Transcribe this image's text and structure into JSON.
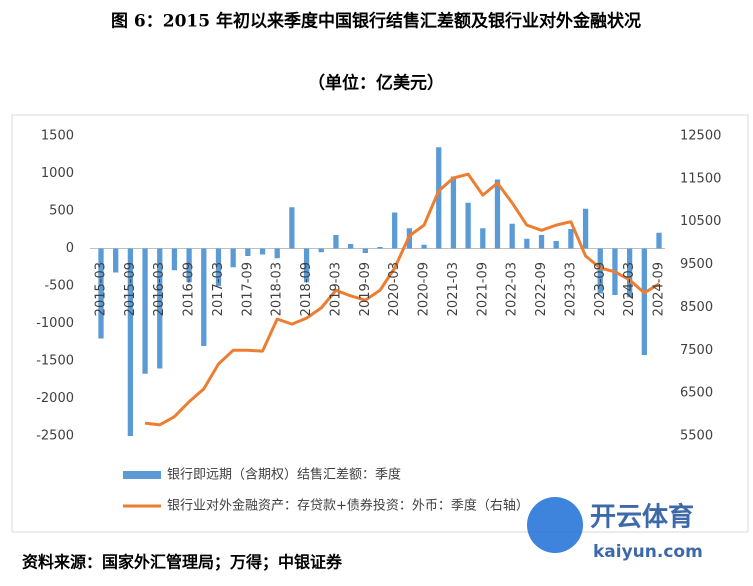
{
  "chart_data": {
    "type": "bar",
    "title": "图 6：2015 年初以来季度中国银行结售汇差额及银行业对外金融状况",
    "subtitle": "（单位：亿美元）",
    "categories": [
      "2015-03",
      null,
      "2015-09",
      null,
      "2016-03",
      null,
      "2016-09",
      null,
      "2017-03",
      null,
      "2017-09",
      null,
      "2018-03",
      null,
      "2018-09",
      null,
      "2019-03",
      null,
      "2019-09",
      null,
      "2020-03",
      null,
      "2020-09",
      null,
      "2021-03",
      null,
      "2021-09",
      null,
      "2022-03",
      null,
      "2022-09",
      null,
      "2023-03",
      null,
      "2023-09",
      null,
      "2024-03",
      null,
      "2024-09"
    ],
    "series": [
      {
        "name": "银行即远期（含期权）结售汇差额：季度",
        "type": "bar",
        "color": "#5b9bd5",
        "values": [
          -1200,
          -320,
          -2500,
          -1670,
          -1600,
          -290,
          -450,
          -1300,
          -500,
          -250,
          -100,
          -80,
          -130,
          550,
          -450,
          -50,
          180,
          60,
          -60,
          20,
          480,
          270,
          50,
          1350,
          960,
          610,
          270,
          920,
          330,
          130,
          180,
          100,
          260,
          530,
          -600,
          -620,
          -650,
          -1420,
          210
        ]
      },
      {
        "name": "银行业对外金融资产：存贷款+债券投资：外币：季度（右轴）",
        "type": "line",
        "axis": "y2",
        "color": "#ed7d31",
        "values": [
          null,
          null,
          null,
          5800,
          5760,
          5950,
          6300,
          6600,
          7180,
          7500,
          7500,
          7480,
          8230,
          8110,
          8250,
          8490,
          8900,
          8770,
          8670,
          8900,
          9420,
          10170,
          10420,
          11220,
          11520,
          11610,
          11120,
          11400,
          10940,
          10420,
          10300,
          10420,
          10500,
          9700,
          9420,
          9330,
          9140,
          8840,
          9050
        ]
      }
    ],
    "ylim": [
      -2500,
      1500
    ],
    "yticks": [
      -2500,
      -2000,
      -1500,
      -1000,
      -500,
      0,
      500,
      1000,
      1500
    ],
    "y2lim": [
      5500,
      12500
    ],
    "y2ticks": [
      5500,
      6500,
      7500,
      8500,
      9500,
      10500,
      11500,
      12500
    ],
    "grid": false,
    "legend": "bottom"
  },
  "source": "资料来源：国家外汇管理局；万得；中银证券",
  "watermark": {
    "brand": "开云体育",
    "site": "kaiyun.com"
  }
}
